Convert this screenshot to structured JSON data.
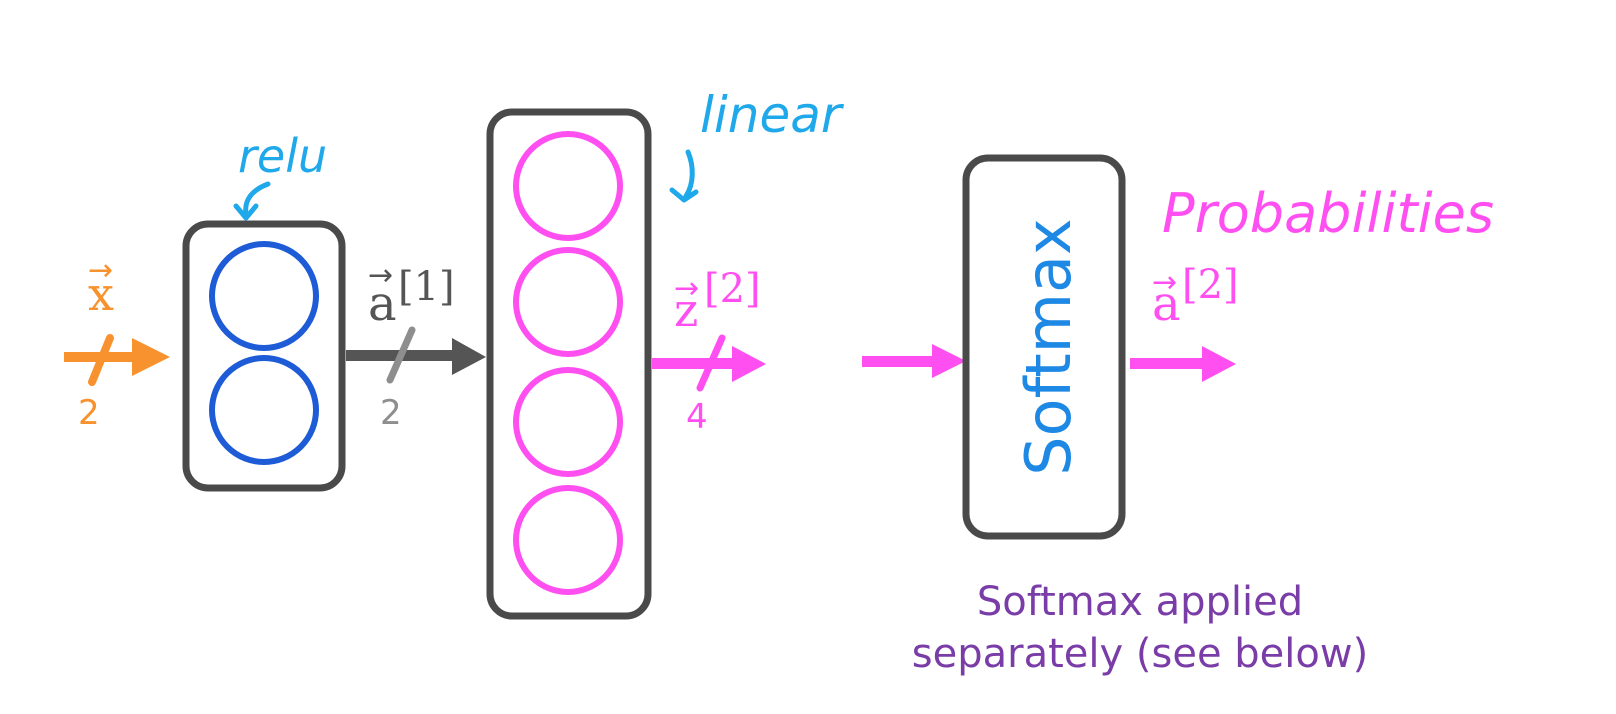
{
  "colors": {
    "input": "#F7922E",
    "hidden": "#555555",
    "hidden_neuron": "#1E5BD6",
    "output": "#FF4FF0",
    "annotation_blue": "#1FA8EA",
    "softmax_text": "#1E88E5",
    "note": "#7A3DA8",
    "count_gray": "#8E8E8E",
    "box_border": "#4A4A4A"
  },
  "input": {
    "symbol": "x",
    "arrow_glyph": "→",
    "size": "2"
  },
  "hidden_layer": {
    "activation_label": "relu",
    "neurons": 2
  },
  "a1": {
    "symbol": "a",
    "superscript": "[1]",
    "size": "2"
  },
  "output_layer": {
    "activation_label": "linear",
    "neurons": 4
  },
  "z2": {
    "symbol": "z",
    "superscript": "[2]",
    "size": "4"
  },
  "softmax": {
    "label": "Softmax"
  },
  "output": {
    "title": "Probabilities",
    "symbol": "a",
    "superscript": "[2]"
  },
  "note": {
    "line1": "Softmax applied",
    "line2": "separately (see below)"
  }
}
